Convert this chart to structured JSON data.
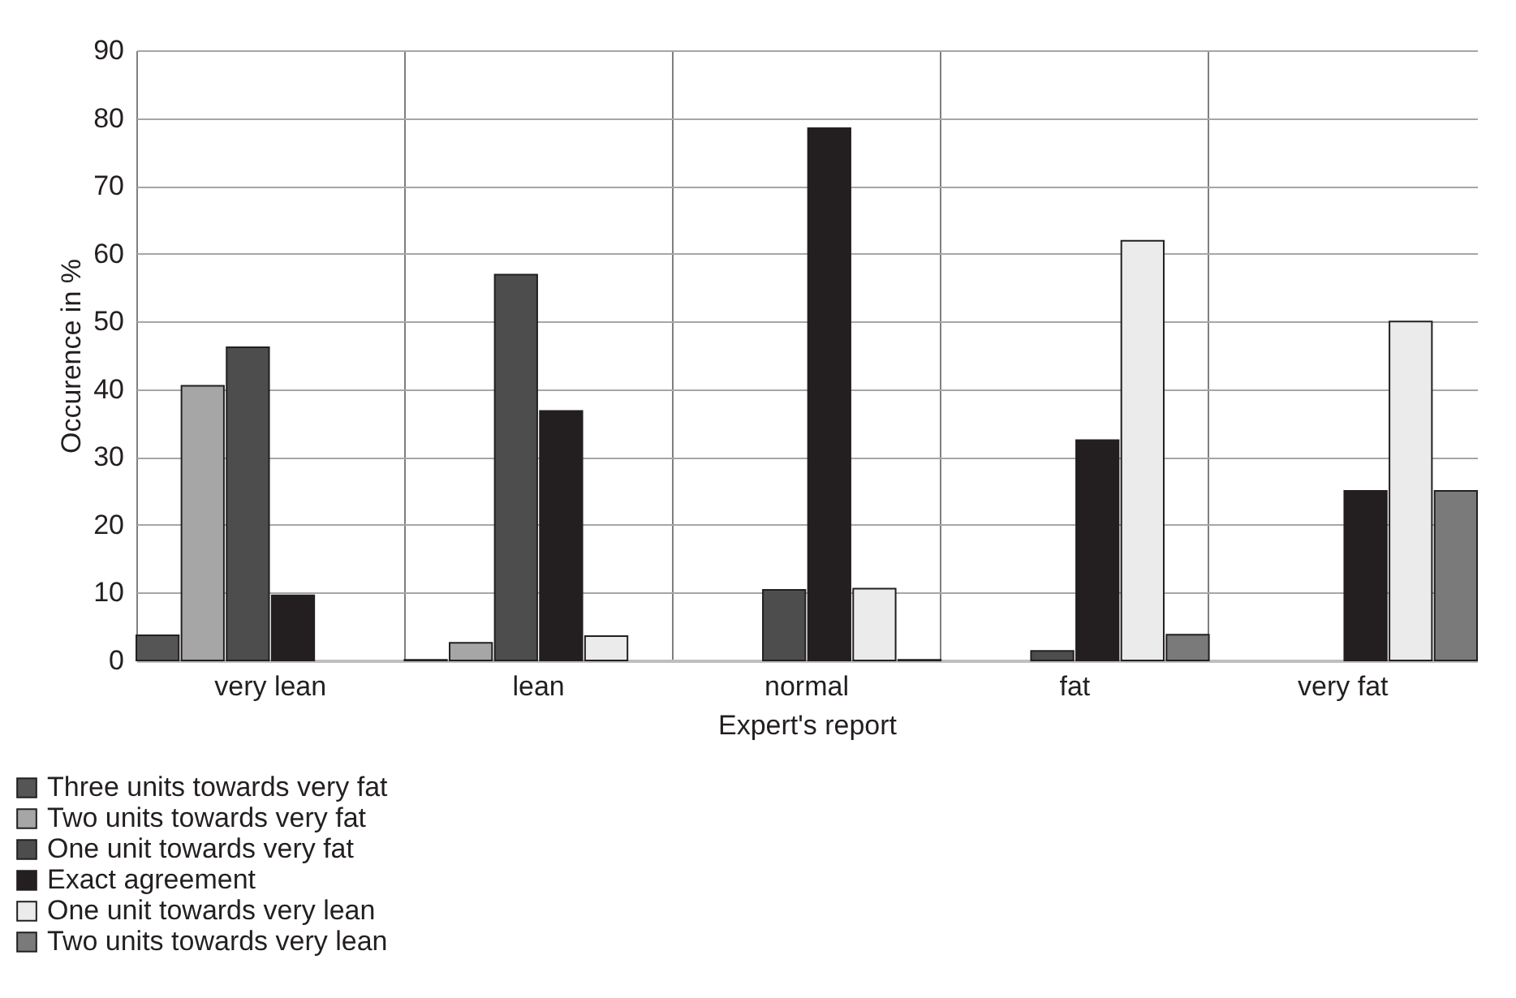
{
  "chart_data": {
    "type": "bar",
    "xlabel": "Expert's report",
    "ylabel": "Occurence in %",
    "categories": [
      "very lean",
      "lean",
      "normal",
      "fat",
      "very fat"
    ],
    "series": [
      {
        "name": "Three units towards very fat",
        "color": "#555555",
        "values": [
          3.7,
          0.1,
          null,
          null,
          null
        ]
      },
      {
        "name": "Two units towards very fat",
        "color": "#a6a6a6",
        "values": [
          40.5,
          2.6,
          null,
          null,
          null
        ]
      },
      {
        "name": "One unit towards very fat",
        "color": "#4d4d4d",
        "values": [
          46.2,
          56.9,
          10.4,
          1.4,
          null
        ]
      },
      {
        "name": "Exact agreement",
        "color": "#231f20",
        "values": [
          9.6,
          36.8,
          78.5,
          32.5,
          25.0
        ]
      },
      {
        "name": "One unit towards very lean",
        "color": "#ebebeb",
        "values": [
          null,
          3.6,
          10.6,
          61.9,
          50.0
        ]
      },
      {
        "name": "Two units towards very lean",
        "color": "#7a7a7a",
        "values": [
          null,
          null,
          0.1,
          3.8,
          25.0
        ]
      }
    ],
    "ylim": [
      0,
      90
    ],
    "yticks": [
      0,
      10,
      20,
      30,
      40,
      50,
      60,
      70,
      80,
      90
    ],
    "grid": true,
    "legend": "bottom left"
  }
}
